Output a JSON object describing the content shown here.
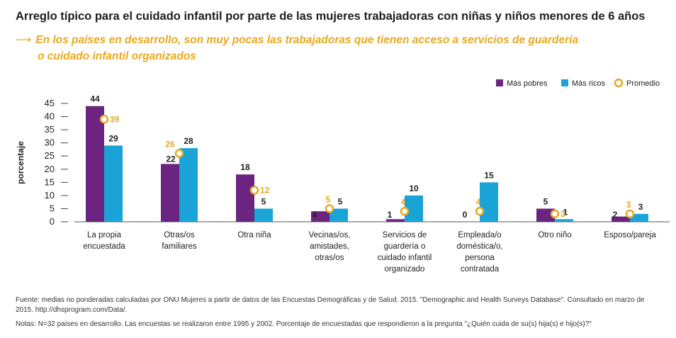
{
  "title": "Arreglo típico para el cuidado infantil por parte de las mujeres trabajadoras con niñas y niños menores de 6 años",
  "subtitle_arrow": "⟶",
  "subtitle_line1": "En los países en desarrollo, son muy pocas las trabajadoras que tienen acceso a servicios de guardería",
  "subtitle_line2": "o cuidado infantil organizados",
  "source": "Fuente: medias no ponderadas calculadas por ONU Mujeres a partir de datos de las Encuestas Demográficas y de Salud. 2015. \"Demographic and Health Surveys Database\". Consultado en marzo de 2015. http://dhsprogram.com/Data/.",
  "notes": "Notas: N=32 países en desarrollo. Las encuestas se realizaron entre 1995 y 2002. Porcentaje de encuestadas que respondieron a la pregunta \"¿Quién cuida de su(s) hija(s) e hijo(s)?\"",
  "colors": {
    "poor": "#6b2581",
    "rich": "#1aa3d6",
    "avg": "#e8a920"
  },
  "chart_data": {
    "type": "bar",
    "ylabel": "porcentaje",
    "ylim": [
      0,
      45
    ],
    "yticks": [
      0,
      5,
      10,
      15,
      20,
      25,
      30,
      35,
      40,
      45
    ],
    "grid": false,
    "legend_position": "top-right",
    "categories": [
      [
        "La propia",
        "encuestada"
      ],
      [
        "Otras/os",
        "familiares"
      ],
      [
        "Otra niña"
      ],
      [
        "Vecinas/os,",
        "amistades,",
        "otras/os"
      ],
      [
        "Servicios de",
        "guardería o",
        "cuidado infantil",
        "organizado"
      ],
      [
        "Empleada/o",
        "doméstica/o,",
        "persona",
        "contratada"
      ],
      [
        "Otro niño"
      ],
      [
        "Esposo/pareja"
      ]
    ],
    "series": [
      {
        "name": "Más pobres",
        "values": [
          44,
          22,
          18,
          4,
          1,
          0,
          5,
          2
        ]
      },
      {
        "name": "Más ricos",
        "values": [
          29,
          28,
          5,
          5,
          10,
          15,
          1,
          3
        ]
      }
    ],
    "average": {
      "name": "Promedio",
      "values": [
        39,
        26,
        12,
        5,
        4,
        4,
        3,
        3
      ]
    }
  }
}
